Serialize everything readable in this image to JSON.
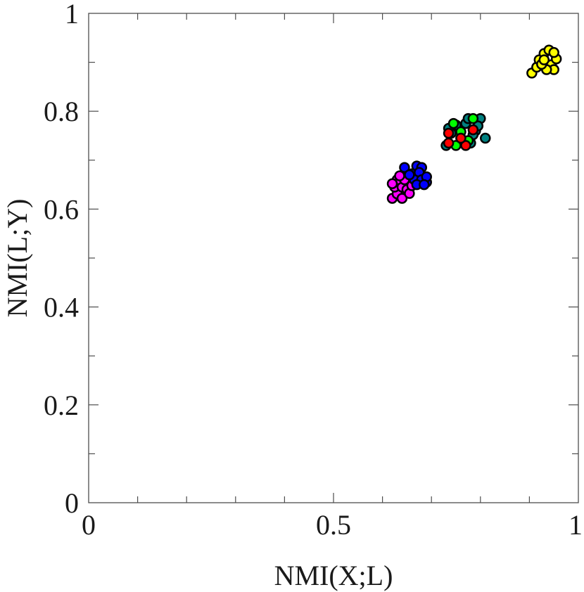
{
  "chart_data": {
    "type": "scatter",
    "title": "",
    "xlabel": "NMI(X;L)",
    "ylabel": "NMI(L;Y)",
    "xlim": [
      0,
      1
    ],
    "ylim": [
      0,
      1
    ],
    "x_ticks": [
      0,
      0.5,
      1
    ],
    "x_tick_labels": [
      "0",
      "0.5",
      "1"
    ],
    "x_minor_ticks": [
      0.1,
      0.2,
      0.3,
      0.4,
      0.6,
      0.7,
      0.8,
      0.9
    ],
    "y_ticks": [
      0,
      0.2,
      0.4,
      0.6,
      0.8,
      1
    ],
    "y_tick_labels": [
      "0",
      "0.2",
      "0.4",
      "0.6",
      "0.8",
      "1"
    ],
    "y_minor_ticks": [
      0.1,
      0.3,
      0.5,
      0.7,
      0.9
    ],
    "grid": false,
    "legend": "none",
    "series": [
      {
        "color": "#ff00ff",
        "points": [
          [
            0.62,
            0.622
          ],
          [
            0.63,
            0.631
          ],
          [
            0.64,
            0.622
          ],
          [
            0.625,
            0.645
          ],
          [
            0.64,
            0.645
          ],
          [
            0.65,
            0.64
          ],
          [
            0.655,
            0.632
          ],
          [
            0.63,
            0.66
          ],
          [
            0.645,
            0.66
          ],
          [
            0.635,
            0.668
          ],
          [
            0.62,
            0.652
          ],
          [
            0.66,
            0.648
          ]
        ]
      },
      {
        "color": "#0000ff",
        "points": [
          [
            0.645,
            0.685
          ],
          [
            0.66,
            0.672
          ],
          [
            0.67,
            0.688
          ],
          [
            0.68,
            0.685
          ],
          [
            0.675,
            0.675
          ],
          [
            0.665,
            0.66
          ],
          [
            0.68,
            0.66
          ],
          [
            0.69,
            0.655
          ],
          [
            0.69,
            0.666
          ],
          [
            0.655,
            0.67
          ],
          [
            0.67,
            0.65
          ],
          [
            0.685,
            0.65
          ]
        ]
      },
      {
        "color": "#008080",
        "points": [
          [
            0.73,
            0.73
          ],
          [
            0.74,
            0.755
          ],
          [
            0.75,
            0.772
          ],
          [
            0.76,
            0.745
          ],
          [
            0.77,
            0.775
          ],
          [
            0.775,
            0.785
          ],
          [
            0.78,
            0.735
          ],
          [
            0.79,
            0.76
          ],
          [
            0.8,
            0.785
          ],
          [
            0.81,
            0.745
          ],
          [
            0.785,
            0.752
          ],
          [
            0.795,
            0.77
          ],
          [
            0.765,
            0.735
          ],
          [
            0.735,
            0.765
          ]
        ]
      },
      {
        "color": "#00ff00",
        "points": [
          [
            0.745,
            0.775
          ],
          [
            0.75,
            0.73
          ],
          [
            0.76,
            0.758
          ],
          [
            0.785,
            0.785
          ],
          [
            0.775,
            0.74
          ]
        ]
      },
      {
        "color": "#ff0000",
        "points": [
          [
            0.735,
            0.755
          ],
          [
            0.735,
            0.735
          ],
          [
            0.77,
            0.73
          ],
          [
            0.785,
            0.762
          ],
          [
            0.76,
            0.745
          ]
        ]
      },
      {
        "color": "#ffff00",
        "points": [
          [
            0.905,
            0.878
          ],
          [
            0.915,
            0.89
          ],
          [
            0.92,
            0.905
          ],
          [
            0.93,
            0.918
          ],
          [
            0.94,
            0.925
          ],
          [
            0.945,
            0.895
          ],
          [
            0.95,
            0.885
          ],
          [
            0.955,
            0.907
          ],
          [
            0.935,
            0.885
          ],
          [
            0.925,
            0.896
          ],
          [
            0.95,
            0.92
          ],
          [
            0.93,
            0.905
          ]
        ]
      }
    ]
  }
}
